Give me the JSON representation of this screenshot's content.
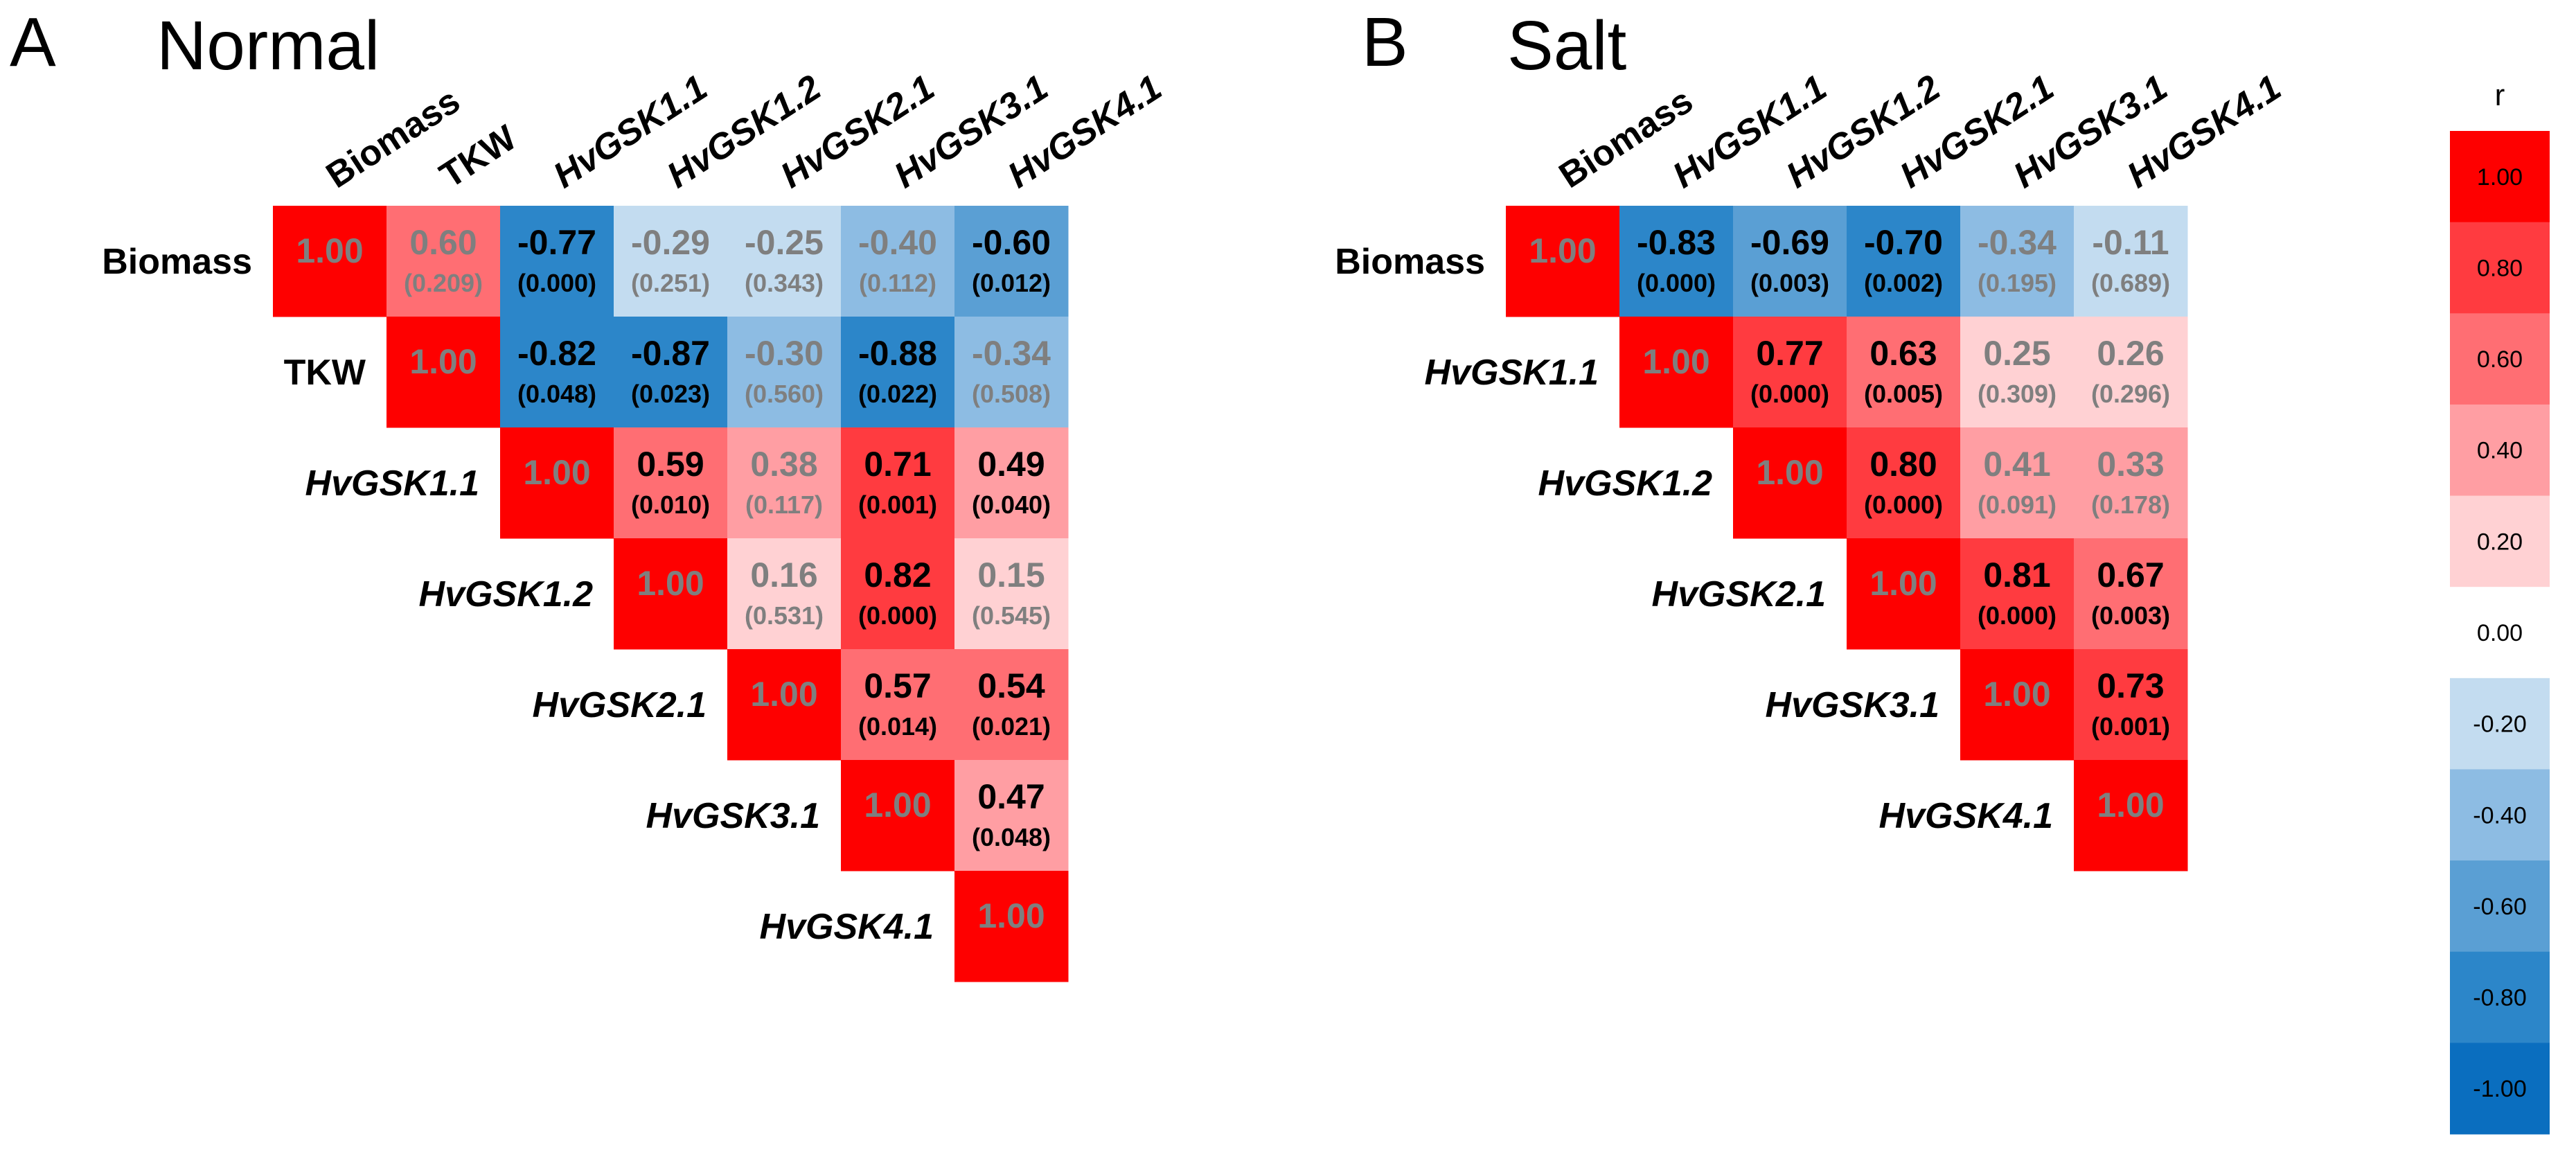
{
  "colors": {
    "significant_text": "#000000",
    "nonsignificant_text": "#7f7f7f",
    "legend_bins": [
      "#0a6ebf",
      "#2c86c9",
      "#5a9fd4",
      "#8dbce3",
      "#c3dcf0",
      "#ffffff",
      "#ffd1d3",
      "#ff9ea3",
      "#ff6e73",
      "#ff3b40",
      "#fe0000"
    ]
  },
  "chart_data": [
    {
      "type": "heatmap",
      "panel": "A",
      "title": "Normal",
      "variables": [
        {
          "name": "Biomass",
          "italic": false
        },
        {
          "name": "TKW",
          "italic": false
        },
        {
          "name": "HvGSK1.1",
          "italic": true
        },
        {
          "name": "HvGSK1.2",
          "italic": true
        },
        {
          "name": "HvGSK2.1",
          "italic": true
        },
        {
          "name": "HvGSK3.1",
          "italic": true
        },
        {
          "name": "HvGSK4.1",
          "italic": true
        }
      ],
      "cells": [
        {
          "row": 0,
          "col": 0,
          "r": "1.00",
          "v": 1.0,
          "p": "",
          "sig": false
        },
        {
          "row": 0,
          "col": 1,
          "r": "0.60",
          "v": 0.6,
          "p": "(0.209)",
          "sig": false
        },
        {
          "row": 0,
          "col": 2,
          "r": "-0.77",
          "v": -0.77,
          "p": "(0.000)",
          "sig": true
        },
        {
          "row": 0,
          "col": 3,
          "r": "-0.29",
          "v": -0.29,
          "p": "(0.251)",
          "sig": false
        },
        {
          "row": 0,
          "col": 4,
          "r": "-0.25",
          "v": -0.25,
          "p": "(0.343)",
          "sig": false
        },
        {
          "row": 0,
          "col": 5,
          "r": "-0.40",
          "v": -0.4,
          "p": "(0.112)",
          "sig": false
        },
        {
          "row": 0,
          "col": 6,
          "r": "-0.60",
          "v": -0.6,
          "p": "(0.012)",
          "sig": true
        },
        {
          "row": 1,
          "col": 1,
          "r": "1.00",
          "v": 1.0,
          "p": "",
          "sig": false
        },
        {
          "row": 1,
          "col": 2,
          "r": "-0.82",
          "v": -0.82,
          "p": "(0.048)",
          "sig": true
        },
        {
          "row": 1,
          "col": 3,
          "r": "-0.87",
          "v": -0.87,
          "p": "(0.023)",
          "sig": true
        },
        {
          "row": 1,
          "col": 4,
          "r": "-0.30",
          "v": -0.3,
          "p": "(0.560)",
          "sig": false
        },
        {
          "row": 1,
          "col": 5,
          "r": "-0.88",
          "v": -0.88,
          "p": "(0.022)",
          "sig": true
        },
        {
          "row": 1,
          "col": 6,
          "r": "-0.34",
          "v": -0.34,
          "p": "(0.508)",
          "sig": false
        },
        {
          "row": 2,
          "col": 2,
          "r": "1.00",
          "v": 1.0,
          "p": "",
          "sig": false
        },
        {
          "row": 2,
          "col": 3,
          "r": "0.59",
          "v": 0.59,
          "p": "(0.010)",
          "sig": true
        },
        {
          "row": 2,
          "col": 4,
          "r": "0.38",
          "v": 0.38,
          "p": "(0.117)",
          "sig": false
        },
        {
          "row": 2,
          "col": 5,
          "r": "0.71",
          "v": 0.71,
          "p": "(0.001)",
          "sig": true
        },
        {
          "row": 2,
          "col": 6,
          "r": "0.49",
          "v": 0.49,
          "p": "(0.040)",
          "sig": true
        },
        {
          "row": 3,
          "col": 3,
          "r": "1.00",
          "v": 1.0,
          "p": "",
          "sig": false
        },
        {
          "row": 3,
          "col": 4,
          "r": "0.16",
          "v": 0.16,
          "p": "(0.531)",
          "sig": false
        },
        {
          "row": 3,
          "col": 5,
          "r": "0.82",
          "v": 0.82,
          "p": "(0.000)",
          "sig": true
        },
        {
          "row": 3,
          "col": 6,
          "r": "0.15",
          "v": 0.15,
          "p": "(0.545)",
          "sig": false
        },
        {
          "row": 4,
          "col": 4,
          "r": "1.00",
          "v": 1.0,
          "p": "",
          "sig": false
        },
        {
          "row": 4,
          "col": 5,
          "r": "0.57",
          "v": 0.57,
          "p": "(0.014)",
          "sig": true
        },
        {
          "row": 4,
          "col": 6,
          "r": "0.54",
          "v": 0.54,
          "p": "(0.021)",
          "sig": true
        },
        {
          "row": 5,
          "col": 5,
          "r": "1.00",
          "v": 1.0,
          "p": "",
          "sig": false
        },
        {
          "row": 5,
          "col": 6,
          "r": "0.47",
          "v": 0.47,
          "p": "(0.048)",
          "sig": true
        },
        {
          "row": 6,
          "col": 6,
          "r": "1.00",
          "v": 1.0,
          "p": "",
          "sig": false
        }
      ]
    },
    {
      "type": "heatmap",
      "panel": "B",
      "title": "Salt",
      "variables": [
        {
          "name": "Biomass",
          "italic": false
        },
        {
          "name": "HvGSK1.1",
          "italic": true
        },
        {
          "name": "HvGSK1.2",
          "italic": true
        },
        {
          "name": "HvGSK2.1",
          "italic": true
        },
        {
          "name": "HvGSK3.1",
          "italic": true
        },
        {
          "name": "HvGSK4.1",
          "italic": true
        }
      ],
      "cells": [
        {
          "row": 0,
          "col": 0,
          "r": "1.00",
          "v": 1.0,
          "p": "",
          "sig": false
        },
        {
          "row": 0,
          "col": 1,
          "r": "-0.83",
          "v": -0.83,
          "p": "(0.000)",
          "sig": true
        },
        {
          "row": 0,
          "col": 2,
          "r": "-0.69",
          "v": -0.69,
          "p": "(0.003)",
          "sig": true
        },
        {
          "row": 0,
          "col": 3,
          "r": "-0.70",
          "v": -0.7,
          "p": "(0.002)",
          "sig": true
        },
        {
          "row": 0,
          "col": 4,
          "r": "-0.34",
          "v": -0.34,
          "p": "(0.195)",
          "sig": false
        },
        {
          "row": 0,
          "col": 5,
          "r": "-0.11",
          "v": -0.11,
          "p": "(0.689)",
          "sig": false
        },
        {
          "row": 1,
          "col": 1,
          "r": "1.00",
          "v": 1.0,
          "p": "",
          "sig": false
        },
        {
          "row": 1,
          "col": 2,
          "r": "0.77",
          "v": 0.77,
          "p": "(0.000)",
          "sig": true
        },
        {
          "row": 1,
          "col": 3,
          "r": "0.63",
          "v": 0.63,
          "p": "(0.005)",
          "sig": true
        },
        {
          "row": 1,
          "col": 4,
          "r": "0.25",
          "v": 0.25,
          "p": "(0.309)",
          "sig": false
        },
        {
          "row": 1,
          "col": 5,
          "r": "0.26",
          "v": 0.26,
          "p": "(0.296)",
          "sig": false
        },
        {
          "row": 2,
          "col": 2,
          "r": "1.00",
          "v": 1.0,
          "p": "",
          "sig": false
        },
        {
          "row": 2,
          "col": 3,
          "r": "0.80",
          "v": 0.8,
          "p": "(0.000)",
          "sig": true
        },
        {
          "row": 2,
          "col": 4,
          "r": "0.41",
          "v": 0.41,
          "p": "(0.091)",
          "sig": false
        },
        {
          "row": 2,
          "col": 5,
          "r": "0.33",
          "v": 0.33,
          "p": "(0.178)",
          "sig": false
        },
        {
          "row": 3,
          "col": 3,
          "r": "1.00",
          "v": 1.0,
          "p": "",
          "sig": false
        },
        {
          "row": 3,
          "col": 4,
          "r": "0.81",
          "v": 0.81,
          "p": "(0.000)",
          "sig": true
        },
        {
          "row": 3,
          "col": 5,
          "r": "0.67",
          "v": 0.67,
          "p": "(0.003)",
          "sig": true
        },
        {
          "row": 4,
          "col": 4,
          "r": "1.00",
          "v": 1.0,
          "p": "",
          "sig": false
        },
        {
          "row": 4,
          "col": 5,
          "r": "0.73",
          "v": 0.73,
          "p": "(0.001)",
          "sig": true
        },
        {
          "row": 5,
          "col": 5,
          "r": "1.00",
          "v": 1.0,
          "p": "",
          "sig": false
        }
      ]
    }
  ],
  "legend": {
    "title": "r",
    "ticks": [
      "1.00",
      "0.80",
      "0.60",
      "0.40",
      "0.20",
      "0.00",
      "-0.20",
      "-0.40",
      "-0.60",
      "-0.80",
      "-1.00"
    ],
    "range": [
      -1,
      1
    ]
  }
}
